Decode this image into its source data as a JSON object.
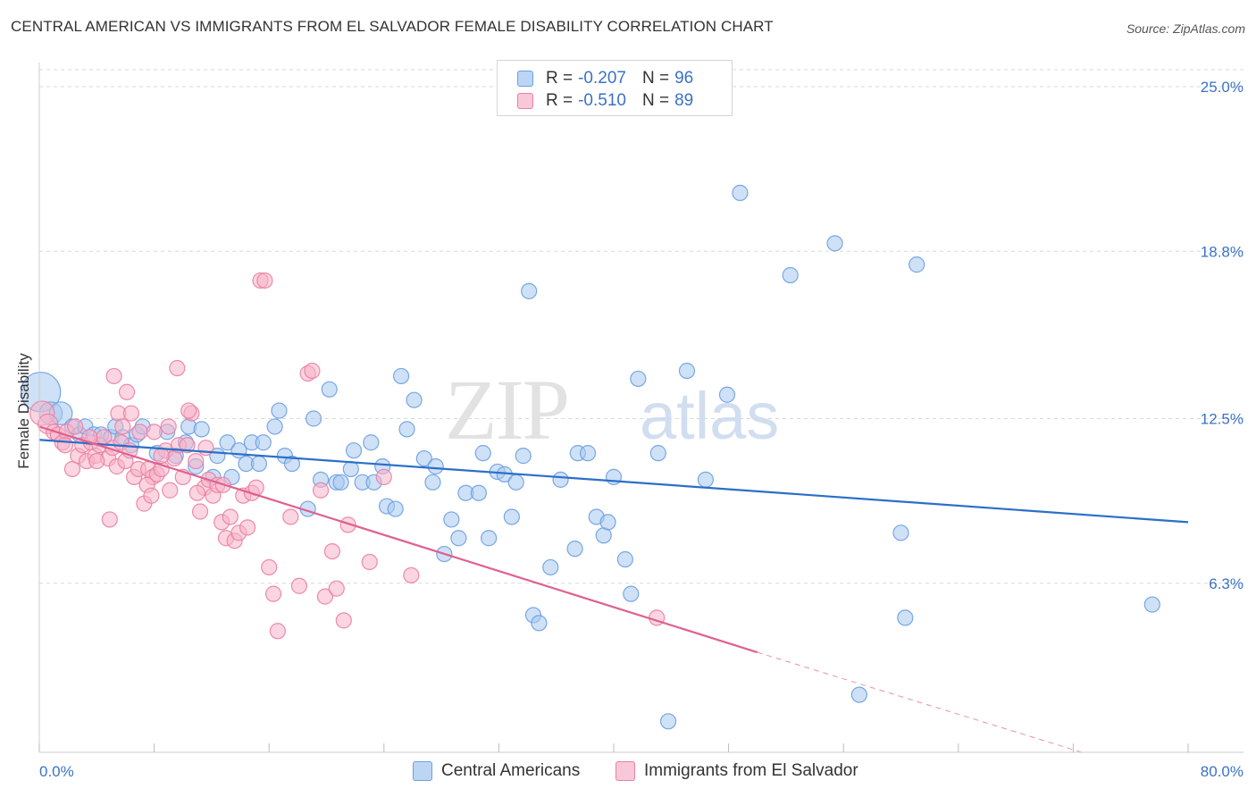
{
  "title": "CENTRAL AMERICAN VS IMMIGRANTS FROM EL SALVADOR FEMALE DISABILITY CORRELATION CHART",
  "source": "Source: ZipAtlas.com",
  "watermark": {
    "part1": "ZIP",
    "part2": "atlas"
  },
  "legend": {
    "rows": [
      {
        "r_label": "R =",
        "r_value": "-0.207",
        "n_label": "N =",
        "n_value": "96"
      },
      {
        "r_label": "R =",
        "r_value": "-0.510",
        "n_label": "N =",
        "n_value": "89"
      }
    ]
  },
  "colors": {
    "blue_fill": "#a8c8f0",
    "blue_stroke": "#6a9fe0",
    "blue_line": "#2a6fc9",
    "pink_fill": "#f7b3c8",
    "pink_stroke": "#ea7fa2",
    "pink_line": "#e0608f",
    "grid": "#d9d9d9",
    "tick_label": "#3a72c6"
  },
  "chart_data": {
    "type": "scatter",
    "title": "CENTRAL AMERICAN VS IMMIGRANTS FROM EL SALVADOR FEMALE DISABILITY CORRELATION CHART",
    "xlabel": "",
    "ylabel": "Female Disability",
    "xlim": [
      0,
      80
    ],
    "ylim": [
      0,
      26.5
    ],
    "x_tick_labels": [
      "0.0%",
      "80.0%"
    ],
    "y_ticks": [
      6.3,
      12.5,
      18.8,
      25.0
    ],
    "y_tick_labels": [
      "6.3%",
      "12.5%",
      "18.8%",
      "25.0%"
    ],
    "grid": true,
    "legend_position": "top-center",
    "series": [
      {
        "name": "Central Americans",
        "color": "#6a9fe0",
        "trend": {
          "x0": 0,
          "y0": 11.7,
          "x1": 80,
          "y1": 8.6
        },
        "points": [
          {
            "x": 0.1,
            "y": 13.5,
            "s": 2.6
          },
          {
            "x": 0.8,
            "y": 12.7,
            "s": 1.5
          },
          {
            "x": 1.5,
            "y": 12.7,
            "s": 1.5
          },
          {
            "x": 2.3,
            "y": 12.2
          },
          {
            "x": 2.8,
            "y": 11.9
          },
          {
            "x": 3.2,
            "y": 12.2
          },
          {
            "x": 3.8,
            "y": 11.9
          },
          {
            "x": 4.3,
            "y": 11.9
          },
          {
            "x": 5.0,
            "y": 11.8
          },
          {
            "x": 5.3,
            "y": 12.2
          },
          {
            "x": 5.8,
            "y": 11.8
          },
          {
            "x": 6.4,
            "y": 11.5
          },
          {
            "x": 6.8,
            "y": 11.9
          },
          {
            "x": 7.2,
            "y": 12.2
          },
          {
            "x": 8.2,
            "y": 11.2
          },
          {
            "x": 8.9,
            "y": 12.0
          },
          {
            "x": 9.5,
            "y": 11.1
          },
          {
            "x": 10.2,
            "y": 11.6
          },
          {
            "x": 10.4,
            "y": 12.2
          },
          {
            "x": 10.9,
            "y": 10.7
          },
          {
            "x": 11.3,
            "y": 12.1
          },
          {
            "x": 12.1,
            "y": 10.3
          },
          {
            "x": 12.4,
            "y": 11.1
          },
          {
            "x": 13.1,
            "y": 11.6
          },
          {
            "x": 13.4,
            "y": 10.3
          },
          {
            "x": 13.9,
            "y": 11.3
          },
          {
            "x": 14.4,
            "y": 10.8
          },
          {
            "x": 14.8,
            "y": 11.6
          },
          {
            "x": 15.3,
            "y": 10.8
          },
          {
            "x": 15.6,
            "y": 11.6
          },
          {
            "x": 16.4,
            "y": 12.2
          },
          {
            "x": 16.7,
            "y": 12.8
          },
          {
            "x": 17.1,
            "y": 11.1
          },
          {
            "x": 17.6,
            "y": 10.8
          },
          {
            "x": 18.7,
            "y": 9.1
          },
          {
            "x": 19.1,
            "y": 12.5
          },
          {
            "x": 19.6,
            "y": 10.2
          },
          {
            "x": 20.2,
            "y": 13.6
          },
          {
            "x": 20.7,
            "y": 10.1
          },
          {
            "x": 21.0,
            "y": 10.1
          },
          {
            "x": 21.7,
            "y": 10.6
          },
          {
            "x": 21.9,
            "y": 11.3
          },
          {
            "x": 22.5,
            "y": 10.1
          },
          {
            "x": 23.1,
            "y": 11.6
          },
          {
            "x": 23.3,
            "y": 10.1
          },
          {
            "x": 23.9,
            "y": 10.7
          },
          {
            "x": 24.2,
            "y": 9.2
          },
          {
            "x": 24.8,
            "y": 9.1
          },
          {
            "x": 25.2,
            "y": 14.1
          },
          {
            "x": 25.6,
            "y": 12.1
          },
          {
            "x": 26.1,
            "y": 13.2
          },
          {
            "x": 26.8,
            "y": 11.0
          },
          {
            "x": 27.4,
            "y": 10.1
          },
          {
            "x": 27.6,
            "y": 10.7
          },
          {
            "x": 28.2,
            "y": 7.4
          },
          {
            "x": 28.7,
            "y": 8.7
          },
          {
            "x": 29.2,
            "y": 8.0
          },
          {
            "x": 29.7,
            "y": 9.7
          },
          {
            "x": 30.6,
            "y": 9.7
          },
          {
            "x": 30.9,
            "y": 11.2
          },
          {
            "x": 31.3,
            "y": 8.0
          },
          {
            "x": 31.9,
            "y": 10.5
          },
          {
            "x": 32.4,
            "y": 10.4
          },
          {
            "x": 32.9,
            "y": 8.8
          },
          {
            "x": 33.2,
            "y": 10.1
          },
          {
            "x": 33.7,
            "y": 11.1
          },
          {
            "x": 34.1,
            "y": 17.3
          },
          {
            "x": 34.4,
            "y": 5.1
          },
          {
            "x": 34.8,
            "y": 4.8
          },
          {
            "x": 35.6,
            "y": 6.9
          },
          {
            "x": 36.3,
            "y": 10.2
          },
          {
            "x": 37.3,
            "y": 7.6
          },
          {
            "x": 37.5,
            "y": 11.2
          },
          {
            "x": 38.2,
            "y": 11.2
          },
          {
            "x": 38.8,
            "y": 8.8
          },
          {
            "x": 39.3,
            "y": 8.1
          },
          {
            "x": 39.6,
            "y": 8.6
          },
          {
            "x": 40.0,
            "y": 10.3
          },
          {
            "x": 40.8,
            "y": 7.2
          },
          {
            "x": 41.2,
            "y": 5.9
          },
          {
            "x": 41.7,
            "y": 14.0
          },
          {
            "x": 43.1,
            "y": 11.2
          },
          {
            "x": 43.8,
            "y": 1.1
          },
          {
            "x": 45.1,
            "y": 14.3
          },
          {
            "x": 46.4,
            "y": 10.2
          },
          {
            "x": 47.9,
            "y": 13.4
          },
          {
            "x": 48.8,
            "y": 21.0
          },
          {
            "x": 52.3,
            "y": 17.9
          },
          {
            "x": 55.4,
            "y": 19.1
          },
          {
            "x": 57.1,
            "y": 2.1
          },
          {
            "x": 60.0,
            "y": 8.2
          },
          {
            "x": 60.3,
            "y": 5.0
          },
          {
            "x": 61.1,
            "y": 18.3
          },
          {
            "x": 77.5,
            "y": 5.5
          }
        ]
      },
      {
        "name": "Immigrants from El Salvador",
        "color": "#ea7fa2",
        "trend": {
          "x0": 0,
          "y0": 12.2,
          "x1": 50.0,
          "y1": 3.7,
          "dash_x1": 80,
          "dash_y1": -1.3
        },
        "points": [
          {
            "x": 0.2,
            "y": 12.7,
            "s": 1.6
          },
          {
            "x": 0.6,
            "y": 12.3,
            "s": 1.3
          },
          {
            "x": 1.0,
            "y": 12.0
          },
          {
            "x": 1.3,
            "y": 11.9
          },
          {
            "x": 1.6,
            "y": 11.6
          },
          {
            "x": 1.9,
            "y": 12.0
          },
          {
            "x": 2.3,
            "y": 10.6
          },
          {
            "x": 2.7,
            "y": 11.1
          },
          {
            "x": 3.0,
            "y": 11.5
          },
          {
            "x": 3.3,
            "y": 10.9
          },
          {
            "x": 3.6,
            "y": 11.6
          },
          {
            "x": 3.9,
            "y": 11.1
          },
          {
            "x": 4.2,
            "y": 11.5
          },
          {
            "x": 4.5,
            "y": 11.8
          },
          {
            "x": 4.8,
            "y": 11.0
          },
          {
            "x": 5.1,
            "y": 11.4
          },
          {
            "x": 5.4,
            "y": 10.7
          },
          {
            "x": 5.7,
            "y": 11.6
          },
          {
            "x": 6.0,
            "y": 10.9
          },
          {
            "x": 6.3,
            "y": 11.3
          },
          {
            "x": 6.6,
            "y": 10.3
          },
          {
            "x": 6.9,
            "y": 10.6
          },
          {
            "x": 7.0,
            "y": 12.0
          },
          {
            "x": 7.3,
            "y": 9.3
          },
          {
            "x": 7.6,
            "y": 10.6
          },
          {
            "x": 7.9,
            "y": 10.3
          },
          {
            "x": 8.2,
            "y": 10.4
          },
          {
            "x": 8.5,
            "y": 10.6
          },
          {
            "x": 8.8,
            "y": 11.3
          },
          {
            "x": 9.1,
            "y": 9.8
          },
          {
            "x": 9.4,
            "y": 11.0
          },
          {
            "x": 9.7,
            "y": 11.5
          },
          {
            "x": 10.0,
            "y": 10.3
          },
          {
            "x": 10.3,
            "y": 11.5
          },
          {
            "x": 10.6,
            "y": 12.7
          },
          {
            "x": 10.9,
            "y": 10.9
          },
          {
            "x": 11.2,
            "y": 9.0
          },
          {
            "x": 11.5,
            "y": 9.9
          },
          {
            "x": 11.8,
            "y": 10.2
          },
          {
            "x": 12.1,
            "y": 9.6
          },
          {
            "x": 12.4,
            "y": 10.0
          },
          {
            "x": 12.7,
            "y": 8.6
          },
          {
            "x": 13.0,
            "y": 8.0
          },
          {
            "x": 13.3,
            "y": 8.8
          },
          {
            "x": 13.6,
            "y": 7.9
          },
          {
            "x": 13.9,
            "y": 8.2
          },
          {
            "x": 14.2,
            "y": 9.6
          },
          {
            "x": 14.5,
            "y": 8.4
          },
          {
            "x": 14.8,
            "y": 9.7
          },
          {
            "x": 15.1,
            "y": 9.9
          },
          {
            "x": 15.4,
            "y": 17.7
          },
          {
            "x": 15.7,
            "y": 17.7
          },
          {
            "x": 16.0,
            "y": 6.9
          },
          {
            "x": 16.3,
            "y": 5.9
          },
          {
            "x": 16.6,
            "y": 4.5
          },
          {
            "x": 17.5,
            "y": 8.8
          },
          {
            "x": 18.1,
            "y": 6.2
          },
          {
            "x": 18.7,
            "y": 14.2
          },
          {
            "x": 19.0,
            "y": 14.3
          },
          {
            "x": 19.6,
            "y": 9.8
          },
          {
            "x": 19.9,
            "y": 5.8
          },
          {
            "x": 20.4,
            "y": 7.5
          },
          {
            "x": 20.7,
            "y": 6.1
          },
          {
            "x": 21.2,
            "y": 4.9
          },
          {
            "x": 21.5,
            "y": 8.5
          },
          {
            "x": 23.0,
            "y": 7.1
          },
          {
            "x": 24.0,
            "y": 10.3
          },
          {
            "x": 25.9,
            "y": 6.6
          },
          {
            "x": 43.0,
            "y": 5.0
          },
          {
            "x": 5.2,
            "y": 14.1
          },
          {
            "x": 5.5,
            "y": 12.7
          },
          {
            "x": 5.8,
            "y": 12.2
          },
          {
            "x": 6.1,
            "y": 13.5
          },
          {
            "x": 6.4,
            "y": 12.7
          },
          {
            "x": 7.5,
            "y": 10.0
          },
          {
            "x": 8.0,
            "y": 12.0
          },
          {
            "x": 8.5,
            "y": 11.1
          },
          {
            "x": 9.0,
            "y": 12.2
          },
          {
            "x": 9.6,
            "y": 14.4
          },
          {
            "x": 10.4,
            "y": 12.8
          },
          {
            "x": 11.0,
            "y": 9.7
          },
          {
            "x": 4.0,
            "y": 10.9
          },
          {
            "x": 3.5,
            "y": 11.8
          },
          {
            "x": 2.5,
            "y": 12.2
          },
          {
            "x": 1.8,
            "y": 11.5
          },
          {
            "x": 4.9,
            "y": 8.7
          },
          {
            "x": 7.8,
            "y": 9.6
          },
          {
            "x": 12.8,
            "y": 10.0
          },
          {
            "x": 11.6,
            "y": 11.4
          }
        ]
      }
    ]
  },
  "bottom_legend": {
    "items": [
      {
        "label": "Central Americans"
      },
      {
        "label": "Immigrants from El Salvador"
      }
    ]
  }
}
